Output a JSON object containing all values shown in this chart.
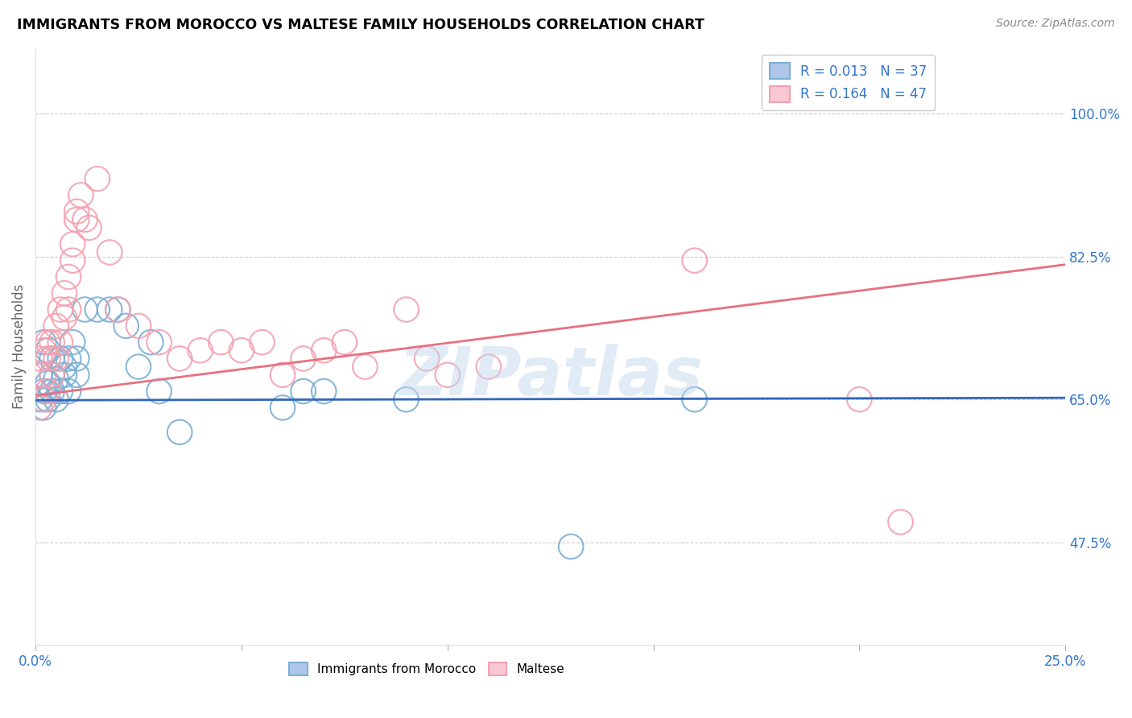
{
  "title": "IMMIGRANTS FROM MOROCCO VS MALTESE FAMILY HOUSEHOLDS CORRELATION CHART",
  "source": "Source: ZipAtlas.com",
  "ylabel_label": "Family Households",
  "xlim": [
    0.0,
    0.25
  ],
  "ylim": [
    0.35,
    1.08
  ],
  "ytick_values": [
    1.0,
    0.825,
    0.65,
    0.475
  ],
  "ytick_labels": [
    "100.0%",
    "82.5%",
    "65.0%",
    "47.5%"
  ],
  "xtick_positions": [
    0.0,
    0.05,
    0.1,
    0.15,
    0.2,
    0.25
  ],
  "xtick_labels": [
    "0.0%",
    "",
    "",
    "",
    "",
    "25.0%"
  ],
  "watermark": "ZIPatlas",
  "blue_r": 0.013,
  "blue_n": 37,
  "pink_r": 0.164,
  "pink_n": 47,
  "blue_color": "#7bafd4",
  "pink_color": "#f4a0b0",
  "blue_line_color": "#3366bb",
  "pink_line_color": "#e87080",
  "blue_scatter_x": [
    0.001,
    0.001,
    0.002,
    0.002,
    0.002,
    0.003,
    0.003,
    0.003,
    0.004,
    0.004,
    0.004,
    0.005,
    0.005,
    0.006,
    0.006,
    0.007,
    0.007,
    0.008,
    0.008,
    0.009,
    0.01,
    0.01,
    0.012,
    0.015,
    0.018,
    0.02,
    0.022,
    0.025,
    0.028,
    0.03,
    0.035,
    0.06,
    0.065,
    0.07,
    0.09,
    0.13,
    0.16
  ],
  "blue_scatter_y": [
    0.65,
    0.68,
    0.64,
    0.66,
    0.72,
    0.65,
    0.67,
    0.71,
    0.66,
    0.68,
    0.7,
    0.65,
    0.675,
    0.7,
    0.66,
    0.69,
    0.68,
    0.66,
    0.7,
    0.72,
    0.7,
    0.68,
    0.76,
    0.76,
    0.76,
    0.76,
    0.74,
    0.69,
    0.72,
    0.66,
    0.61,
    0.64,
    0.66,
    0.66,
    0.65,
    0.47,
    0.65
  ],
  "pink_scatter_x": [
    0.001,
    0.001,
    0.002,
    0.002,
    0.002,
    0.003,
    0.003,
    0.003,
    0.004,
    0.004,
    0.005,
    0.005,
    0.006,
    0.006,
    0.007,
    0.007,
    0.008,
    0.008,
    0.009,
    0.009,
    0.01,
    0.01,
    0.011,
    0.012,
    0.013,
    0.015,
    0.018,
    0.02,
    0.025,
    0.03,
    0.035,
    0.04,
    0.045,
    0.05,
    0.055,
    0.06,
    0.065,
    0.07,
    0.075,
    0.08,
    0.09,
    0.095,
    0.1,
    0.11,
    0.16,
    0.2,
    0.21
  ],
  "pink_scatter_y": [
    0.64,
    0.7,
    0.65,
    0.68,
    0.71,
    0.66,
    0.7,
    0.72,
    0.68,
    0.72,
    0.7,
    0.74,
    0.72,
    0.76,
    0.75,
    0.78,
    0.8,
    0.76,
    0.82,
    0.84,
    0.87,
    0.88,
    0.9,
    0.87,
    0.86,
    0.92,
    0.83,
    0.76,
    0.74,
    0.72,
    0.7,
    0.71,
    0.72,
    0.71,
    0.72,
    0.68,
    0.7,
    0.71,
    0.72,
    0.69,
    0.76,
    0.7,
    0.68,
    0.69,
    0.82,
    0.65,
    0.5
  ],
  "blue_line_x": [
    0.0,
    0.25
  ],
  "blue_line_y": [
    0.649,
    0.652
  ],
  "pink_line_x": [
    0.0,
    0.25
  ],
  "pink_line_y": [
    0.655,
    0.815
  ]
}
